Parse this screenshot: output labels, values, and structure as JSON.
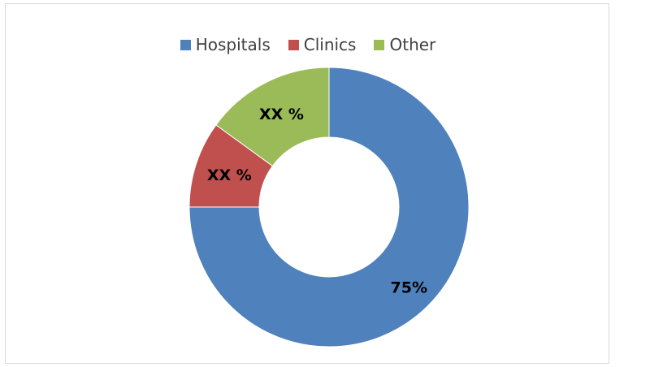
{
  "chart_data": {
    "type": "pie",
    "donut": true,
    "legend_position": "top",
    "categories": [
      "Hospitals",
      "Clinics",
      "Other"
    ],
    "values": [
      75,
      10,
      15
    ],
    "labels": [
      "75%",
      "XX %",
      "XX %"
    ],
    "colors": {
      "Hospitals": "#4f81bd",
      "Clinics": "#c0504d",
      "Other": "#9bbb59"
    }
  }
}
